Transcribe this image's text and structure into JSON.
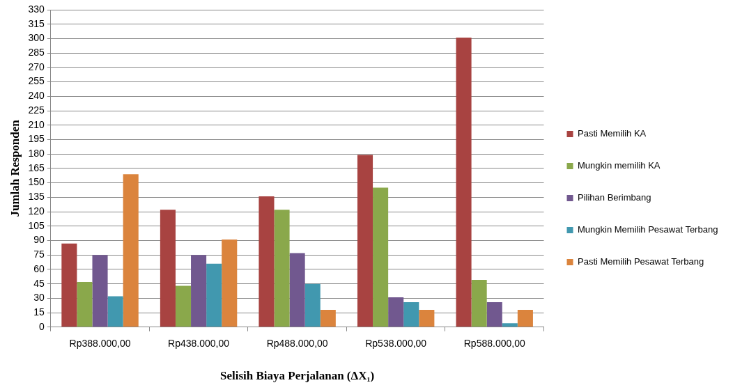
{
  "chart_data": {
    "type": "bar",
    "xlabel": "Selisih Biaya Perjalanan (ΔX₁)",
    "ylabel": "Jumlah Responden",
    "categories": [
      "Rp388.000,00",
      "Rp438.000,00",
      "Rp488.000,00",
      "Rp538.000,00",
      "Rp588.000,00"
    ],
    "series": [
      {
        "name": "Pasti Memilih KA",
        "color": "#a84341",
        "values": [
          87,
          122,
          136,
          179,
          301
        ]
      },
      {
        "name": "Mungkin memilih KA",
        "color": "#8aa84b",
        "values": [
          47,
          43,
          122,
          145,
          49
        ]
      },
      {
        "name": "Pilihan Berimbang",
        "color": "#71588f",
        "values": [
          75,
          75,
          77,
          31,
          26
        ]
      },
      {
        "name": "Mungkin Memilih Pesawat Terbang",
        "color": "#4198af",
        "values": [
          32,
          66,
          45,
          26,
          4
        ]
      },
      {
        "name": "Pasti Memilih Pesawat Terbang",
        "color": "#db843d",
        "values": [
          159,
          91,
          18,
          18,
          18
        ]
      }
    ],
    "ylim": [
      0,
      330
    ],
    "yticks": [
      0,
      15,
      30,
      45,
      60,
      75,
      90,
      105,
      120,
      135,
      150,
      165,
      180,
      195,
      210,
      225,
      240,
      255,
      270,
      285,
      300,
      315,
      330
    ],
    "grid": "y",
    "legend": "right"
  }
}
